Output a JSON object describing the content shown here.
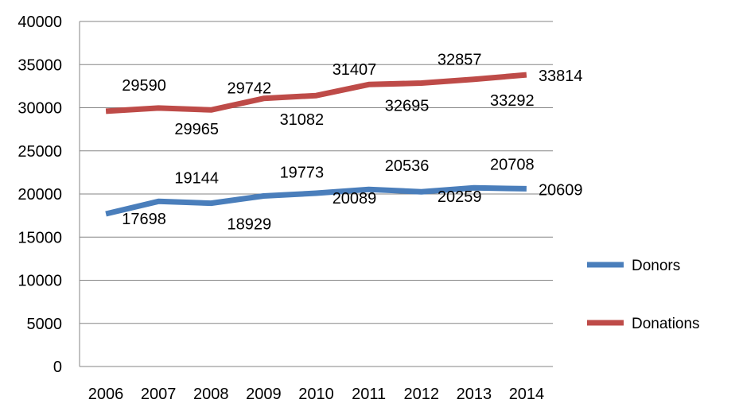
{
  "chart_data": {
    "type": "line",
    "x": [
      "2006",
      "2007",
      "2008",
      "2009",
      "2010",
      "2011",
      "2012",
      "2013",
      "2014"
    ],
    "ylim": [
      0,
      40000
    ],
    "yticks": [
      "0",
      "5000",
      "10000",
      "15000",
      "20000",
      "25000",
      "30000",
      "35000",
      "40000"
    ],
    "grid": true,
    "legend_position": "right",
    "title": "",
    "xlabel": "",
    "ylabel": "",
    "series": [
      {
        "name": "Donors",
        "color": "#4a7ebb",
        "values": [
          17698,
          19144,
          18929,
          19773,
          20089,
          20536,
          20259,
          20708,
          20609
        ],
        "labels": [
          "17698",
          "19144",
          "18929",
          "19773",
          "20089",
          "20536",
          "20259",
          "20708",
          "20609"
        ]
      },
      {
        "name": "Donations",
        "color": "#be4b48",
        "values": [
          29590,
          29965,
          29742,
          31082,
          31407,
          32695,
          32857,
          33292,
          33814
        ],
        "labels": [
          "29590",
          "29965",
          "29742",
          "31082",
          "31407",
          "32695",
          "32857",
          "33292",
          "33814"
        ]
      }
    ]
  }
}
